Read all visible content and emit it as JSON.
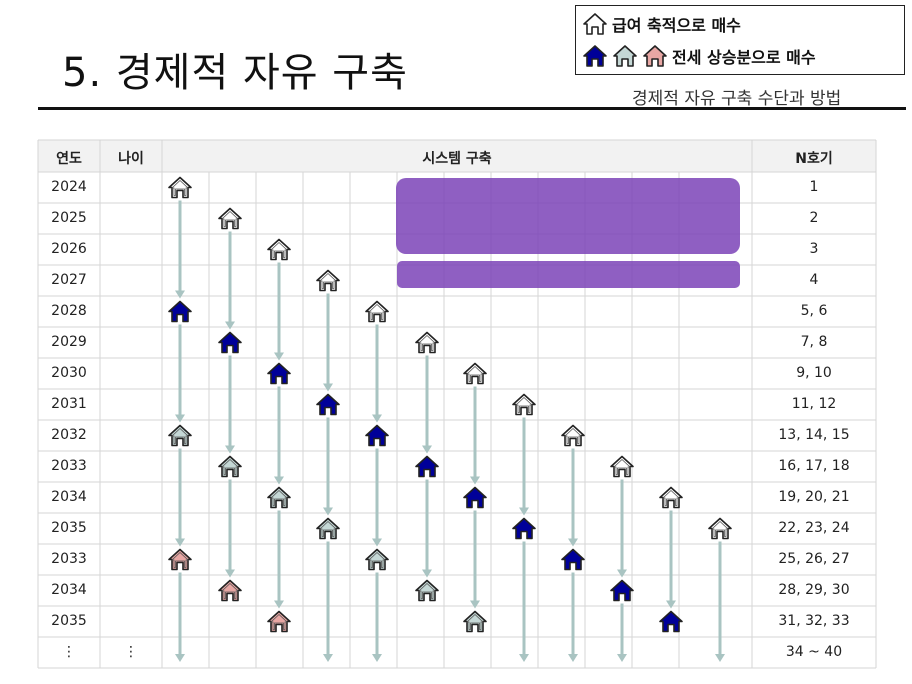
{
  "title": "5. 경제적 자유 구축",
  "subtitle": "경제적 자유 구축 수단과 방법",
  "legend": {
    "item1": "급여 축적으로 매수",
    "item2": "전세 상승분으로 매수"
  },
  "table": {
    "headers": {
      "year": "연도",
      "age": "나이",
      "system": "시스템 구축",
      "n": "N호기"
    },
    "rows": [
      {
        "year": "2024",
        "n": "1"
      },
      {
        "year": "2025",
        "n": "2"
      },
      {
        "year": "2026",
        "n": "3"
      },
      {
        "year": "2027",
        "n": "4"
      },
      {
        "year": "2028",
        "n": "5, 6"
      },
      {
        "year": "2029",
        "n": "7, 8"
      },
      {
        "year": "2030",
        "n": "9, 10"
      },
      {
        "year": "2031",
        "n": "11, 12"
      },
      {
        "year": "2032",
        "n": "13, 14, 15"
      },
      {
        "year": "2033",
        "n": "16, 17, 18"
      },
      {
        "year": "2034",
        "n": "19, 20, 21"
      },
      {
        "year": "2035",
        "n": "22, 23, 24"
      },
      {
        "year": "2033",
        "n": "25, 26, 27"
      },
      {
        "year": "2034",
        "n": "28, 29, 30"
      },
      {
        "year": "2035",
        "n": "31, 32, 33"
      },
      {
        "year": "⋮",
        "age": "⋮",
        "n": "34 ~ 40"
      }
    ]
  },
  "colors": {
    "white_house": "#ffffff",
    "blue_house": "#000099",
    "gray_house": "#c5d8d6",
    "pink_house": "#e8a7a4",
    "arrow": "#a9c4c2",
    "purple": "#7b43b7"
  },
  "houses": [
    {
      "col": 0,
      "row": 0,
      "type": "white"
    },
    {
      "col": 0,
      "row": 4,
      "type": "blue"
    },
    {
      "col": 0,
      "row": 8,
      "type": "gray"
    },
    {
      "col": 0,
      "row": 12,
      "type": "pink"
    },
    {
      "col": 1,
      "row": 1,
      "type": "white"
    },
    {
      "col": 1,
      "row": 5,
      "type": "blue"
    },
    {
      "col": 1,
      "row": 9,
      "type": "gray"
    },
    {
      "col": 1,
      "row": 13,
      "type": "pink"
    },
    {
      "col": 2,
      "row": 2,
      "type": "white"
    },
    {
      "col": 2,
      "row": 6,
      "type": "blue"
    },
    {
      "col": 2,
      "row": 10,
      "type": "gray"
    },
    {
      "col": 2,
      "row": 14,
      "type": "pink"
    },
    {
      "col": 3,
      "row": 3,
      "type": "white"
    },
    {
      "col": 3,
      "row": 7,
      "type": "blue"
    },
    {
      "col": 3,
      "row": 11,
      "type": "gray"
    },
    {
      "col": 4,
      "row": 4,
      "type": "white"
    },
    {
      "col": 4,
      "row": 8,
      "type": "blue"
    },
    {
      "col": 4,
      "row": 12,
      "type": "gray"
    },
    {
      "col": 5,
      "row": 5,
      "type": "white"
    },
    {
      "col": 5,
      "row": 9,
      "type": "blue"
    },
    {
      "col": 5,
      "row": 13,
      "type": "gray"
    },
    {
      "col": 6,
      "row": 6,
      "type": "white"
    },
    {
      "col": 6,
      "row": 10,
      "type": "blue"
    },
    {
      "col": 6,
      "row": 14,
      "type": "gray"
    },
    {
      "col": 7,
      "row": 7,
      "type": "white"
    },
    {
      "col": 7,
      "row": 11,
      "type": "blue"
    },
    {
      "col": 8,
      "row": 8,
      "type": "white"
    },
    {
      "col": 8,
      "row": 12,
      "type": "blue"
    },
    {
      "col": 9,
      "row": 9,
      "type": "white"
    },
    {
      "col": 9,
      "row": 13,
      "type": "blue"
    },
    {
      "col": 10,
      "row": 10,
      "type": "white"
    },
    {
      "col": 10,
      "row": 14,
      "type": "blue"
    },
    {
      "col": 11,
      "row": 11,
      "type": "white"
    }
  ],
  "arrows": [
    {
      "col": 0,
      "from": 0,
      "to": 4
    },
    {
      "col": 0,
      "from": 4,
      "to": 8
    },
    {
      "col": 0,
      "from": 8,
      "to": 12
    },
    {
      "col": 0,
      "from": 12,
      "to": 15
    },
    {
      "col": 1,
      "from": 1,
      "to": 5
    },
    {
      "col": 1,
      "from": 5,
      "to": 9
    },
    {
      "col": 1,
      "from": 9,
      "to": 13
    },
    {
      "col": 2,
      "from": 2,
      "to": 6
    },
    {
      "col": 2,
      "from": 6,
      "to": 10
    },
    {
      "col": 2,
      "from": 10,
      "to": 14
    },
    {
      "col": 3,
      "from": 3,
      "to": 7
    },
    {
      "col": 3,
      "from": 7,
      "to": 11
    },
    {
      "col": 3,
      "from": 11,
      "to": 15
    },
    {
      "col": 4,
      "from": 4,
      "to": 8
    },
    {
      "col": 4,
      "from": 8,
      "to": 12
    },
    {
      "col": 4,
      "from": 12,
      "to": 15
    },
    {
      "col": 5,
      "from": 5,
      "to": 9
    },
    {
      "col": 5,
      "from": 9,
      "to": 13
    },
    {
      "col": 6,
      "from": 6,
      "to": 10
    },
    {
      "col": 6,
      "from": 10,
      "to": 14
    },
    {
      "col": 7,
      "from": 7,
      "to": 11
    },
    {
      "col": 7,
      "from": 11,
      "to": 15
    },
    {
      "col": 8,
      "from": 8,
      "to": 12
    },
    {
      "col": 8,
      "from": 12,
      "to": 15
    },
    {
      "col": 9,
      "from": 9,
      "to": 13
    },
    {
      "col": 9,
      "from": 13,
      "to": 15
    },
    {
      "col": 10,
      "from": 10,
      "to": 14
    },
    {
      "col": 11,
      "from": 11,
      "to": 15
    }
  ]
}
